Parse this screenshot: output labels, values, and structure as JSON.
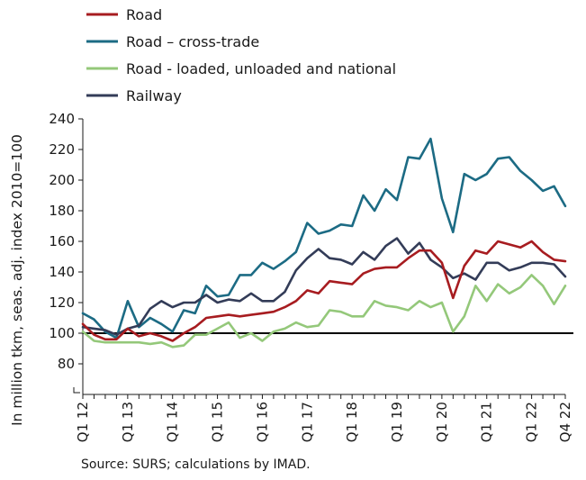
{
  "chart_data": {
    "type": "line",
    "title": "",
    "xlabel": "",
    "ylabel": "In million tkm, seas. adj. index 2010=100",
    "ylim": [
      60,
      240
    ],
    "yticks": [
      80,
      100,
      120,
      140,
      160,
      180,
      200,
      220,
      240
    ],
    "baseline": 100,
    "legend_position": "top-left",
    "x_tick_labels": [
      "Q1 12",
      "Q1 13",
      "Q1 14",
      "Q1 15",
      "Q1 16",
      "Q1 17",
      "Q1 18",
      "Q1 19",
      "Q1 20",
      "Q1 21",
      "Q1 22",
      "Q4 22"
    ],
    "x_tick_positions": [
      0,
      4,
      8,
      12,
      16,
      20,
      24,
      28,
      32,
      36,
      40,
      43
    ],
    "series": [
      {
        "name": "Road",
        "color": "#a71c20",
        "values": [
          106,
          99,
          96,
          96,
          103,
          98,
          100,
          98,
          95,
          100,
          104,
          110,
          111,
          112,
          111,
          112,
          113,
          114,
          117,
          121,
          128,
          126,
          134,
          133,
          132,
          139,
          142,
          143,
          143,
          149,
          154,
          154,
          146,
          123,
          144,
          154,
          152,
          160,
          158,
          156,
          160,
          153,
          148,
          147
        ]
      },
      {
        "name": "Road – cross-trade",
        "color": "#1c6b84",
        "values": [
          113,
          109,
          101,
          97,
          121,
          104,
          110,
          106,
          101,
          115,
          113,
          131,
          124,
          125,
          138,
          138,
          146,
          142,
          147,
          153,
          172,
          165,
          167,
          171,
          170,
          190,
          180,
          194,
          187,
          215,
          214,
          227,
          188,
          166,
          204,
          200,
          204,
          214,
          215,
          206,
          200,
          193,
          196,
          183
        ]
      },
      {
        "name": "Road - loaded, unloaded and national",
        "color": "#94c87a",
        "values": [
          101,
          95,
          94,
          94,
          94,
          94,
          93,
          94,
          91,
          92,
          99,
          99,
          103,
          107,
          97,
          100,
          95,
          101,
          103,
          107,
          104,
          105,
          115,
          114,
          111,
          111,
          121,
          118,
          117,
          115,
          121,
          117,
          120,
          101,
          111,
          131,
          121,
          132,
          126,
          130,
          138,
          131,
          119,
          131
        ]
      },
      {
        "name": "Railway",
        "color": "#333c58",
        "values": [
          104,
          103,
          102,
          99,
          103,
          105,
          116,
          121,
          117,
          120,
          120,
          125,
          120,
          122,
          121,
          126,
          121,
          121,
          127,
          141,
          149,
          155,
          149,
          148,
          145,
          153,
          148,
          157,
          162,
          152,
          159,
          148,
          143,
          136,
          139,
          135,
          146,
          146,
          141,
          143,
          146,
          146,
          145,
          137
        ]
      }
    ]
  },
  "source": "Source: SURS; calculations by IMAD."
}
